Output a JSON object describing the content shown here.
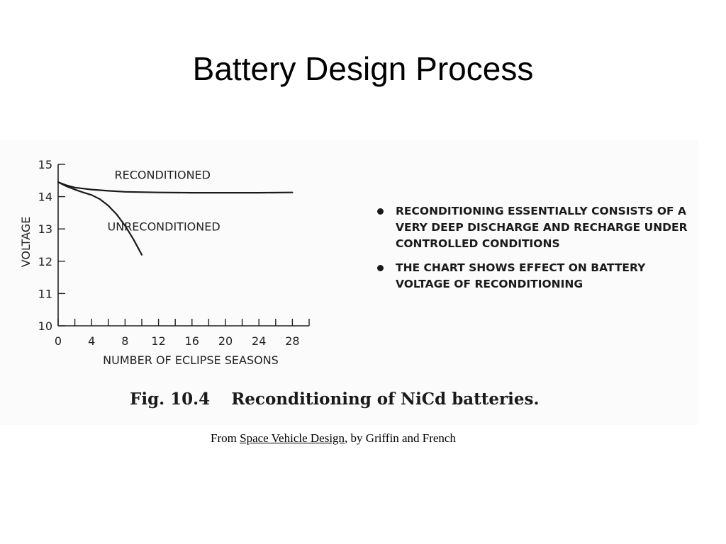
{
  "slide": {
    "title": "Battery Design Process"
  },
  "chart_data": {
    "type": "line",
    "xlabel": "NUMBER OF ECLIPSE SEASONS",
    "ylabel": "VOLTAGE",
    "xlim": [
      0,
      30
    ],
    "ylim": [
      10,
      15
    ],
    "xticks": [
      0,
      4,
      8,
      12,
      16,
      20,
      24,
      28
    ],
    "xtick_labels": [
      "0",
      "4",
      "8",
      "12",
      "16",
      "20",
      "24",
      "28"
    ],
    "yticks": [
      10,
      11,
      12,
      13,
      14,
      15
    ],
    "ytick_labels": [
      "10",
      "11",
      "12",
      "13",
      "14",
      "15"
    ],
    "grid": false,
    "series": [
      {
        "name": "RECONDITIONED",
        "x": [
          0,
          1,
          2,
          4,
          6,
          8,
          12,
          16,
          20,
          24,
          28
        ],
        "y": [
          14.45,
          14.35,
          14.28,
          14.22,
          14.18,
          14.15,
          14.13,
          14.12,
          14.12,
          14.12,
          14.13
        ]
      },
      {
        "name": "UNRECONDITIONED",
        "x": [
          0,
          1,
          2,
          3,
          4,
          5,
          6,
          7,
          8,
          9,
          10
        ],
        "y": [
          14.45,
          14.32,
          14.22,
          14.13,
          14.05,
          13.92,
          13.72,
          13.45,
          13.1,
          12.68,
          12.2
        ]
      }
    ]
  },
  "notes": [
    "RECONDITIONING ESSENTIALLY CONSISTS OF A VERY DEEP DISCHARGE AND RECHARGE UNDER CONTROLLED CONDITIONS",
    "THE CHART SHOWS EFFECT ON BATTERY VOLTAGE OF RECONDITIONING"
  ],
  "caption": {
    "fig_number": "Fig. 10.4",
    "text": "Reconditioning of NiCd batteries."
  },
  "credit": {
    "prefix": "From ",
    "book": "Space Vehicle Design",
    "suffix": ", by Griffin and French"
  }
}
